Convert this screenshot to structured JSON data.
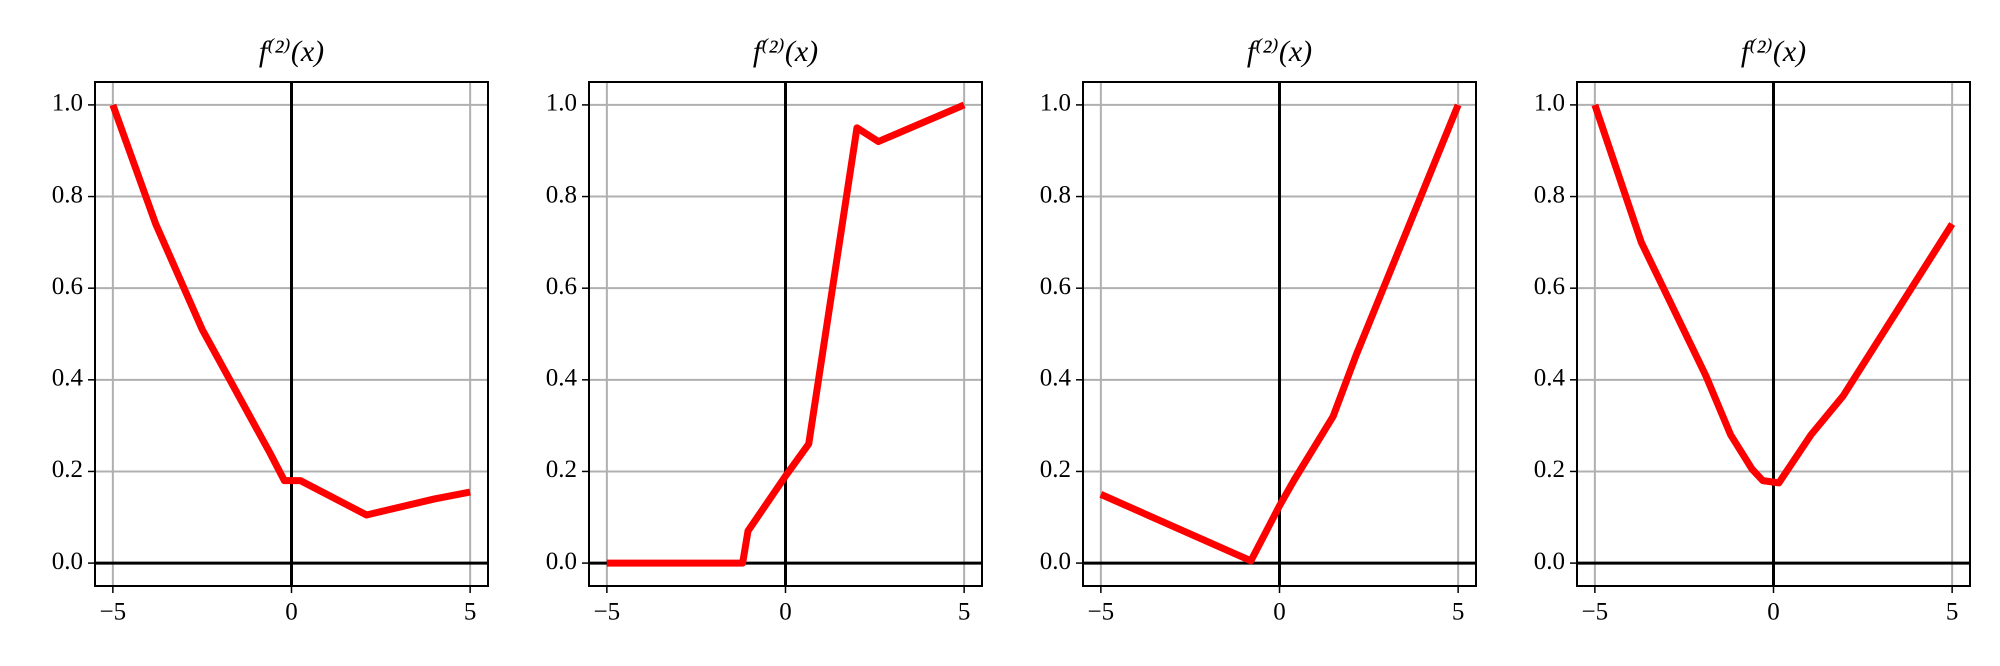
{
  "chart_data": [
    {
      "type": "line",
      "title": "f⁽²⁾(x)",
      "x": [
        -5,
        -3.8,
        -2.5,
        -0.6,
        -0.2,
        0.25,
        2.1,
        4,
        5
      ],
      "series": [
        {
          "color": "#ff0000",
          "values": [
            1.0,
            0.74,
            0.51,
            0.24,
            0.18,
            0.18,
            0.105,
            0.14,
            0.155
          ]
        }
      ],
      "xlim": [
        -5.5,
        5.5
      ],
      "ylim": [
        -0.05,
        1.05
      ],
      "xticks": [
        {
          "value": -5,
          "label": "−5"
        },
        0,
        5
      ],
      "yticks": [
        {
          "value": 0,
          "label": "0.0"
        },
        0.2,
        0.4,
        0.6,
        0.8,
        {
          "value": 1,
          "label": "1.0"
        }
      ],
      "grid": true
    },
    {
      "type": "line",
      "title": "f⁽²⁾(x)",
      "x": [
        -5,
        -1.2,
        -1.05,
        0,
        0.65,
        2,
        2.6,
        5
      ],
      "series": [
        {
          "color": "#ff0000",
          "values": [
            0,
            0,
            0.07,
            0.19,
            0.26,
            0.95,
            0.92,
            1.0
          ]
        }
      ],
      "xlim": [
        -5.5,
        5.5
      ],
      "ylim": [
        -0.05,
        1.05
      ],
      "xticks": [
        {
          "value": -5,
          "label": "−5"
        },
        0,
        5
      ],
      "yticks": [
        {
          "value": 0,
          "label": "0.0"
        },
        0.2,
        0.4,
        0.6,
        0.8,
        {
          "value": 1,
          "label": "1.0"
        }
      ],
      "grid": true
    },
    {
      "type": "line",
      "title": "f⁽²⁾(x)",
      "x": [
        -5,
        -0.8,
        0,
        0.4,
        1.5,
        2.15,
        5
      ],
      "series": [
        {
          "color": "#ff0000",
          "values": [
            0.15,
            0.005,
            0.125,
            0.18,
            0.32,
            0.455,
            1.0
          ]
        }
      ],
      "xlim": [
        -5.5,
        5.5
      ],
      "ylim": [
        -0.05,
        1.05
      ],
      "xticks": [
        {
          "value": -5,
          "label": "−5"
        },
        0,
        5
      ],
      "yticks": [
        {
          "value": 0,
          "label": "0.0"
        },
        0.2,
        0.4,
        0.6,
        0.8,
        {
          "value": 1,
          "label": "1.0"
        }
      ],
      "grid": true
    },
    {
      "type": "line",
      "title": "f⁽²⁾(x)",
      "x": [
        -5,
        -3.7,
        -1.9,
        -1.2,
        -0.6,
        -0.3,
        0.15,
        1.05,
        1.95,
        5
      ],
      "series": [
        {
          "color": "#ff0000",
          "values": [
            1.0,
            0.7,
            0.41,
            0.28,
            0.205,
            0.18,
            0.175,
            0.28,
            0.365,
            0.74
          ]
        }
      ],
      "xlim": [
        -5.5,
        5.5
      ],
      "ylim": [
        -0.05,
        1.05
      ],
      "xticks": [
        {
          "value": -5,
          "label": "−5"
        },
        0,
        5
      ],
      "yticks": [
        {
          "value": 0,
          "label": "0.0"
        },
        0.2,
        0.4,
        0.6,
        0.8,
        {
          "value": 1,
          "label": "1.0"
        }
      ],
      "grid": true
    }
  ]
}
